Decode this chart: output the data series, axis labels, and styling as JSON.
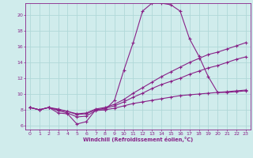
{
  "xlabel": "Windchill (Refroidissement éolien,°C)",
  "bg_color": "#d0ecec",
  "grid_color": "#b0d8d8",
  "line_color": "#882288",
  "xlim": [
    -0.5,
    23.5
  ],
  "ylim": [
    5.5,
    21.5
  ],
  "yticks": [
    6,
    8,
    10,
    12,
    14,
    16,
    18,
    20
  ],
  "xticks": [
    0,
    1,
    2,
    3,
    4,
    5,
    6,
    7,
    8,
    9,
    10,
    11,
    12,
    13,
    14,
    15,
    16,
    17,
    18,
    19,
    20,
    21,
    22,
    23
  ],
  "series": [
    {
      "x": [
        0,
        1,
        2,
        3,
        4,
        5,
        6,
        7,
        8,
        9,
        10,
        11,
        12,
        13,
        14,
        15,
        16,
        17,
        18,
        19,
        20,
        21,
        22,
        23
      ],
      "y": [
        8.3,
        8.0,
        8.3,
        7.6,
        7.5,
        6.2,
        6.5,
        8.0,
        8.0,
        9.2,
        13.0,
        16.5,
        20.5,
        21.5,
        21.5,
        21.3,
        20.5,
        17.0,
        14.8,
        12.2,
        10.2,
        10.2,
        10.3,
        10.4
      ]
    },
    {
      "x": [
        0,
        1,
        2,
        3,
        4,
        5,
        6,
        7,
        8,
        9,
        10,
        11,
        12,
        13,
        14,
        15,
        16,
        17,
        18,
        19,
        20,
        21,
        22,
        23
      ],
      "y": [
        8.3,
        8.0,
        8.3,
        8.1,
        7.8,
        7.5,
        7.6,
        8.1,
        8.3,
        8.7,
        9.3,
        10.1,
        10.8,
        11.5,
        12.2,
        12.8,
        13.4,
        14.0,
        14.5,
        15.0,
        15.3,
        15.7,
        16.1,
        16.5
      ]
    },
    {
      "x": [
        0,
        1,
        2,
        3,
        4,
        5,
        6,
        7,
        8,
        9,
        10,
        11,
        12,
        13,
        14,
        15,
        16,
        17,
        18,
        19,
        20,
        21,
        22,
        23
      ],
      "y": [
        8.3,
        8.0,
        8.3,
        8.0,
        7.8,
        7.4,
        7.5,
        8.0,
        8.2,
        8.5,
        9.0,
        9.6,
        10.1,
        10.7,
        11.2,
        11.6,
        12.0,
        12.5,
        12.9,
        13.3,
        13.6,
        14.0,
        14.4,
        14.7
      ]
    },
    {
      "x": [
        0,
        1,
        2,
        3,
        4,
        5,
        6,
        7,
        8,
        9,
        10,
        11,
        12,
        13,
        14,
        15,
        16,
        17,
        18,
        19,
        20,
        21,
        22,
        23
      ],
      "y": [
        8.3,
        8.0,
        8.3,
        7.9,
        7.6,
        7.1,
        7.2,
        7.9,
        8.0,
        8.2,
        8.5,
        8.8,
        9.0,
        9.2,
        9.4,
        9.6,
        9.8,
        9.9,
        10.0,
        10.1,
        10.2,
        10.3,
        10.4,
        10.5
      ]
    }
  ]
}
